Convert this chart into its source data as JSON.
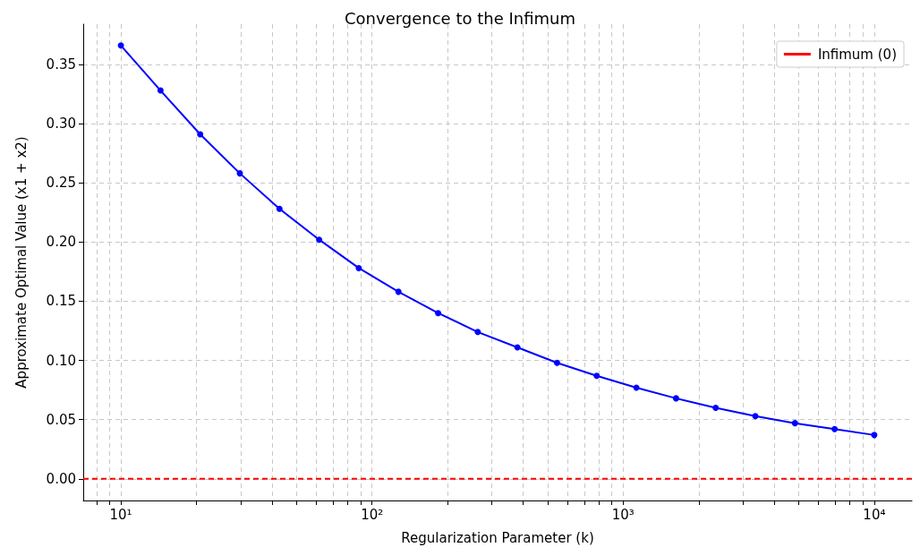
{
  "chart_data": {
    "type": "line",
    "title": "Convergence to the Infimum",
    "xlabel": "Regularization Parameter (k)",
    "ylabel": "Approximate Optimal Value (x1 + x2)",
    "log": "x",
    "grid": true,
    "legend": "top right",
    "marker": "circle",
    "line_style": "solid",
    "xlim": [
      7.08,
      14125
    ],
    "ylim": [
      -0.0183,
      0.384
    ],
    "xticks": [
      {
        "value": 8,
        "label": null
      },
      {
        "value": 9,
        "label": null
      },
      {
        "value": 10,
        "label": "10¹"
      },
      {
        "value": 20,
        "label": null
      },
      {
        "value": 30,
        "label": null
      },
      {
        "value": 40,
        "label": null
      },
      {
        "value": 50,
        "label": null
      },
      {
        "value": 60,
        "label": null
      },
      {
        "value": 70,
        "label": null
      },
      {
        "value": 80,
        "label": null
      },
      {
        "value": 90,
        "label": null
      },
      {
        "value": 100,
        "label": "10²"
      },
      {
        "value": 200,
        "label": null
      },
      {
        "value": 300,
        "label": null
      },
      {
        "value": 400,
        "label": null
      },
      {
        "value": 500,
        "label": null
      },
      {
        "value": 600,
        "label": null
      },
      {
        "value": 700,
        "label": null
      },
      {
        "value": 800,
        "label": null
      },
      {
        "value": 900,
        "label": null
      },
      {
        "value": 1000,
        "label": "10³"
      },
      {
        "value": 2000,
        "label": null
      },
      {
        "value": 3000,
        "label": null
      },
      {
        "value": 4000,
        "label": null
      },
      {
        "value": 5000,
        "label": null
      },
      {
        "value": 6000,
        "label": null
      },
      {
        "value": 7000,
        "label": null
      },
      {
        "value": 8000,
        "label": null
      },
      {
        "value": 9000,
        "label": null
      },
      {
        "value": 10000,
        "label": "10⁴"
      }
    ],
    "yticks": [
      {
        "value": 0,
        "label": "0.00"
      },
      {
        "value": 0.05,
        "label": "0.05"
      },
      {
        "value": 0.1,
        "label": "0.10"
      },
      {
        "value": 0.15,
        "label": "0.15"
      },
      {
        "value": 0.2,
        "label": "0.20"
      },
      {
        "value": 0.25,
        "label": "0.25"
      },
      {
        "value": 0.3,
        "label": "0.30"
      },
      {
        "value": 0.35,
        "label": "0.35"
      }
    ],
    "x": [
      10,
      14.38,
      20.69,
      29.76,
      42.81,
      61.58,
      88.59,
      127.4,
      183.3,
      263.7,
      379.3,
      545.6,
      784.8,
      1129,
      1624,
      2336,
      3360,
      4833,
      6952,
      10000
    ],
    "series": [
      {
        "color": "#0000ff",
        "values": [
          0.366,
          0.328,
          0.291,
          0.258,
          0.228,
          0.202,
          0.178,
          0.158,
          0.14,
          0.124,
          0.111,
          0.098,
          0.087,
          0.077,
          0.068,
          0.06,
          0.053,
          0.047,
          0.042,
          0.037
        ]
      }
    ],
    "ref_lines": [
      {
        "axis": "y",
        "value": 0,
        "label": "Infimum (0)",
        "color": "#ff0000",
        "line_style": "dashed"
      }
    ]
  }
}
